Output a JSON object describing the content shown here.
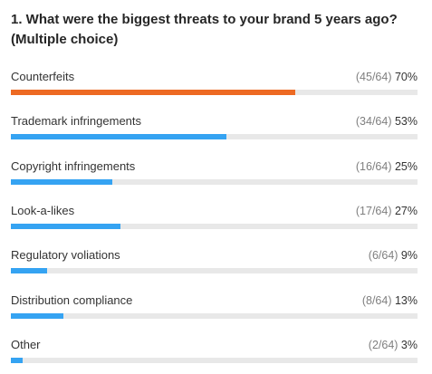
{
  "question": {
    "title": "1. What were the biggest threats to your brand 5 years ago? (Multiple choice)"
  },
  "colors": {
    "highlight": "#ED6A23",
    "bar": "#35A3F2",
    "track": "#E8E8E8"
  },
  "chart_data": {
    "type": "bar",
    "orientation": "horizontal",
    "title": "1. What were the biggest threats to your brand 5 years ago? (Multiple choice)",
    "total": 64,
    "xlim": [
      0,
      100
    ],
    "categories": [
      "Counterfeits",
      "Trademark infringements",
      "Copyright infringements",
      "Look-a-likes",
      "Regulatory voliations",
      "Distribution compliance",
      "Other"
    ],
    "counts": [
      45,
      34,
      16,
      17,
      6,
      8,
      2
    ],
    "values": [
      70,
      53,
      25,
      27,
      9,
      13,
      3
    ],
    "count_labels": [
      "(45/64)",
      "(34/64)",
      "(16/64)",
      "(17/64)",
      "(6/64)",
      "(8/64)",
      "(2/64)"
    ],
    "percent_labels": [
      "70%",
      "53%",
      "25%",
      "27%",
      "9%",
      "13%",
      "3%"
    ],
    "highlighted_index": 0,
    "grid": false,
    "legend": "none"
  }
}
